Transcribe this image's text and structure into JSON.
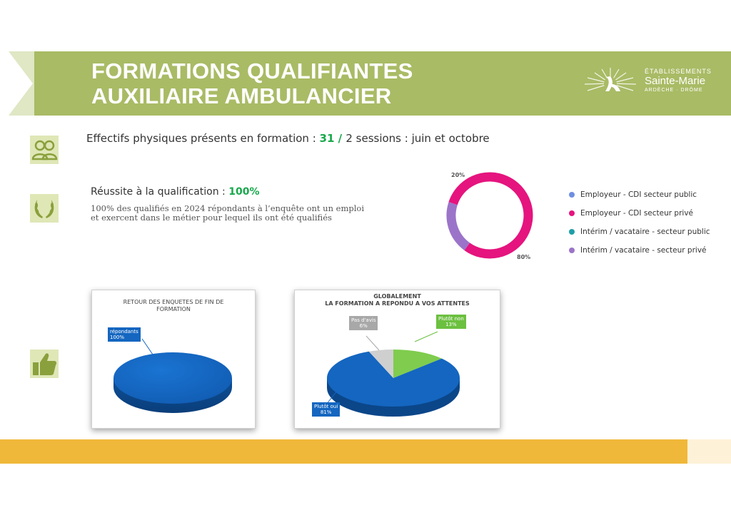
{
  "header": {
    "title_line1": "FORMATIONS QUALIFIANTES",
    "title_line2": "AUXILIAIRE AMBULANCIER",
    "logo": {
      "line1": "ÉTABLISSEMENTS",
      "line2": "Sainte-Marie",
      "line3": "ARDÈCHE · DRÔME"
    }
  },
  "effectifs": {
    "label": "Effectifs physiques présents en formation : ",
    "value": "31",
    "slash": " / ",
    "sessions": "2 sessions : juin  et octobre"
  },
  "reussite": {
    "label": "Réussite à la qualification : ",
    "value": "100%",
    "desc_line1": "100% des qualifiés en 2024 répondants à l’enquête ont un emploi",
    "desc_line2": "et exercent dans le métier pour lequel ils ont été qualifiés"
  },
  "colors": {
    "banner": "#a9bb65",
    "accent_green": "#18a84b",
    "bottom_bar": "#f0b83a",
    "pie_blue": "#1466c0"
  },
  "chart_data": [
    {
      "type": "pie",
      "style": "donut",
      "slices": [
        {
          "label": "Employeur - CDI secteur public",
          "value": 0,
          "color": "#6f8fe0"
        },
        {
          "label": "Employeur - CDI secteur privé",
          "value": 80,
          "color": "#e5147e"
        },
        {
          "label": "Intérim / vacataire - secteur public",
          "value": 0,
          "color": "#1e9fa8"
        },
        {
          "label": "Intérim / vacataire - secteur privé",
          "value": 20,
          "color": "#9b74c9"
        }
      ],
      "data_labels": [
        "80%",
        "20%"
      ],
      "legend": "right"
    },
    {
      "type": "pie",
      "title_line1": "RETOUR DES ENQUETES DE FIN DE",
      "title_line2": "FORMATION",
      "slices": [
        {
          "label": "répondants",
          "value": 100,
          "display": "100%",
          "color": "#1466c0"
        }
      ]
    },
    {
      "type": "pie",
      "title_line1": "GLOBALEMENT",
      "title_line2": "LA FORMATION A REPONDU A VOS ATTENTES",
      "slices": [
        {
          "label": "Plutôt oui",
          "value": 81,
          "display": "81%",
          "color": "#1466c0"
        },
        {
          "label": "Pas d'avis",
          "value": 6,
          "display": "6%",
          "color": "#cfcfcf"
        },
        {
          "label": "Plutôt non",
          "value": 13,
          "display": "13%",
          "color": "#7fcc4e"
        }
      ]
    }
  ]
}
